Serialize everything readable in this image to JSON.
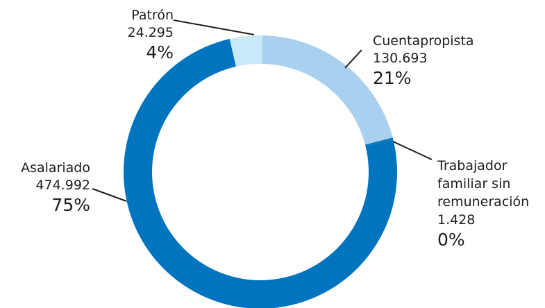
{
  "chart_data": {
    "type": "donut",
    "categories": [
      "Patrón",
      "Cuentapropista",
      "Trabajador familiar sin remuneración",
      "Asalariado"
    ],
    "values": [
      24295,
      130693,
      1428,
      474992
    ],
    "value_labels": [
      "24.295",
      "130.693",
      "1.428",
      "474.992"
    ],
    "percents": [
      4,
      21,
      0,
      75
    ],
    "percent_labels": [
      "4%",
      "21%",
      "0%",
      "75%"
    ],
    "colors": [
      "#c9e8f8",
      "#a9d1ef",
      "#0a75be",
      "#0074bf"
    ]
  }
}
